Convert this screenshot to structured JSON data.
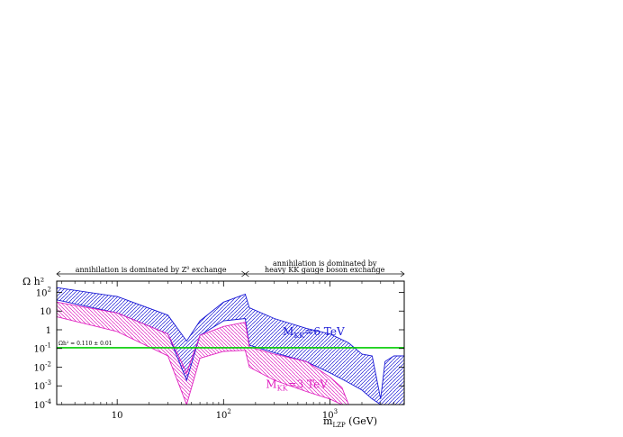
{
  "chart_data": {
    "type": "area",
    "title": "",
    "xlabel": "m_LZP (GeV)",
    "ylabel": "Ω h²",
    "x_scale": "log",
    "y_scale": "log",
    "xlim": [
      2.7,
      5000
    ],
    "ylim": [
      0.0001,
      400
    ],
    "x_ticks": [
      {
        "value": 10,
        "base": "10",
        "exp": ""
      },
      {
        "value": 100,
        "base": "10",
        "exp": "2"
      },
      {
        "value": 1000,
        "base": "10",
        "exp": "3"
      }
    ],
    "y_ticks": [
      {
        "value": 100,
        "base": "10",
        "exp": "2"
      },
      {
        "value": 10,
        "base": "10",
        "exp": ""
      },
      {
        "value": 1,
        "base": "1",
        "exp": ""
      },
      {
        "value": 0.1,
        "base": "10",
        "exp": "-1"
      },
      {
        "value": 0.01,
        "base": "10",
        "exp": "-2"
      },
      {
        "value": 0.001,
        "base": "10",
        "exp": "-3"
      },
      {
        "value": 0.0001,
        "base": "10",
        "exp": "-4"
      }
    ],
    "regions": [
      {
        "label": "annihilation is dominated by Z⁰ exchange",
        "x_range": [
          2.7,
          160
        ]
      },
      {
        "label_line1": "annihilation is dominated by",
        "label_line2": "heavy KK gauge boson exchange",
        "x_range": [
          160,
          5000
        ]
      }
    ],
    "reference_line": {
      "label": "Ωh² = 0.110 ± 0.01",
      "y": 0.11,
      "color": "#00cc00"
    },
    "series": [
      {
        "name": "M_KK=6 TeV",
        "color": "#1a1ad6",
        "upper": [
          [
            2.7,
            180
          ],
          [
            10,
            60
          ],
          [
            30,
            6
          ],
          [
            45,
            0.25
          ],
          [
            60,
            3
          ],
          [
            100,
            30
          ],
          [
            160,
            80
          ],
          [
            175,
            15
          ],
          [
            300,
            4
          ],
          [
            600,
            1.2
          ],
          [
            1000,
            0.6
          ],
          [
            1500,
            0.2
          ],
          [
            2000,
            0.05
          ],
          [
            2500,
            0.04
          ],
          [
            3000,
            0.0002
          ],
          [
            3300,
            0.02
          ],
          [
            4000,
            0.04
          ],
          [
            5000,
            0.04
          ]
        ],
        "lower": [
          [
            2.7,
            40
          ],
          [
            10,
            8
          ],
          [
            30,
            0.6
          ],
          [
            45,
            0.002
          ],
          [
            60,
            0.5
          ],
          [
            100,
            3
          ],
          [
            160,
            4
          ],
          [
            175,
            0.15
          ],
          [
            300,
            0.06
          ],
          [
            600,
            0.02
          ],
          [
            1000,
            0.005
          ],
          [
            1500,
            0.0015
          ],
          [
            2000,
            0.0006
          ],
          [
            2500,
            0.0002
          ],
          [
            3000,
            0.0001
          ],
          [
            5000,
            0.0001
          ]
        ]
      },
      {
        "name": "M_KK=3 TeV",
        "color": "#e020c0",
        "upper": [
          [
            2.7,
            30
          ],
          [
            10,
            8
          ],
          [
            30,
            0.6
          ],
          [
            45,
            0.005
          ],
          [
            60,
            0.5
          ],
          [
            100,
            1.5
          ],
          [
            160,
            2.5
          ],
          [
            175,
            0.12
          ],
          [
            300,
            0.05
          ],
          [
            600,
            0.02
          ],
          [
            1000,
            0.003
          ],
          [
            1300,
            0.0008
          ],
          [
            1500,
            0.0001
          ],
          [
            5000,
            0.0001
          ]
        ],
        "lower": [
          [
            2.7,
            5
          ],
          [
            10,
            0.8
          ],
          [
            30,
            0.04
          ],
          [
            45,
            0.0001
          ],
          [
            60,
            0.03
          ],
          [
            100,
            0.07
          ],
          [
            160,
            0.08
          ],
          [
            175,
            0.01
          ],
          [
            300,
            0.002
          ],
          [
            600,
            0.0005
          ],
          [
            1000,
            0.0002
          ],
          [
            1300,
            0.0001
          ],
          [
            5000,
            0.0001
          ]
        ]
      }
    ],
    "annotations": [
      {
        "text": "M",
        "sub": "KK",
        "rest": "=6 TeV",
        "color": "#1a1ad6",
        "x": 360,
        "y": 0.5
      },
      {
        "text": "M",
        "sub": "KK",
        "rest": "=3 TeV",
        "color": "#e020c0",
        "x": 250,
        "y": 0.0008
      }
    ],
    "grid": false,
    "legend": "none"
  }
}
